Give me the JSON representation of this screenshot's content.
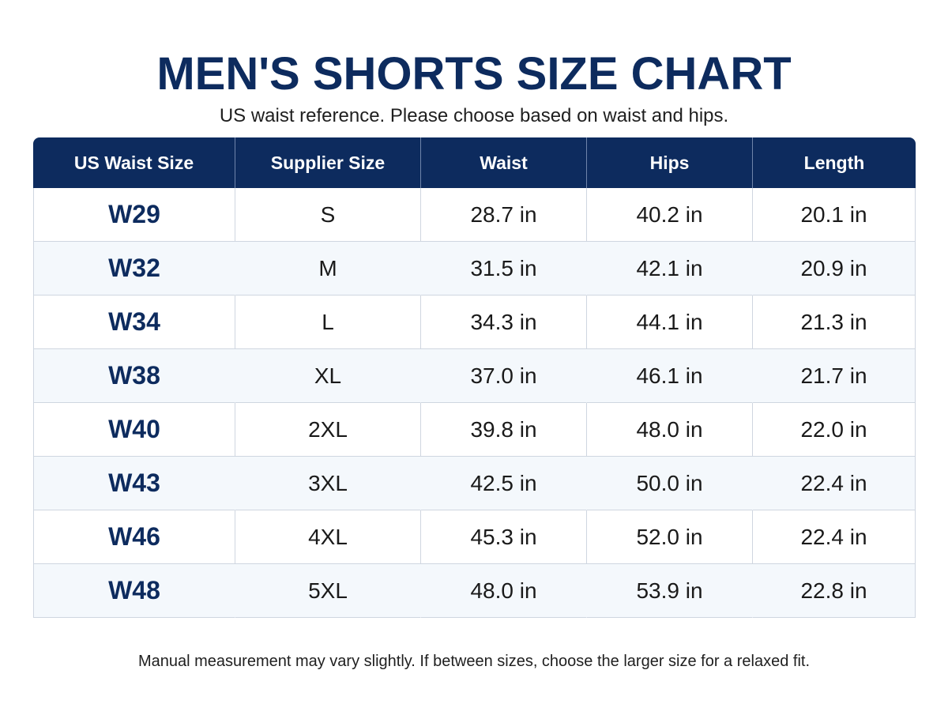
{
  "title": "MEN'S SHORTS SIZE CHART",
  "subtitle": "US waist reference. Please choose based on waist and hips.",
  "table": {
    "headers": [
      "US Waist Size",
      "Supplier Size",
      "Waist",
      "Hips",
      "Length"
    ],
    "rows": [
      [
        "W29",
        "S",
        "28.7 in",
        "40.2 in",
        "20.1 in"
      ],
      [
        "W32",
        "M",
        "31.5 in",
        "42.1 in",
        "20.9 in"
      ],
      [
        "W34",
        "L",
        "34.3 in",
        "44.1 in",
        "21.3 in"
      ],
      [
        "W38",
        "XL",
        "37.0 in",
        "46.1 in",
        "21.7 in"
      ],
      [
        "W40",
        "2XL",
        "39.8 in",
        "48.0 in",
        "22.0 in"
      ],
      [
        "W43",
        "3XL",
        "42.5 in",
        "50.0 in",
        "22.4 in"
      ],
      [
        "W46",
        "4XL",
        "45.3 in",
        "52.0 in",
        "22.4 in"
      ],
      [
        "W48",
        "5XL",
        "48.0 in",
        "53.9 in",
        "22.8 in"
      ]
    ]
  },
  "footnote": "Manual measurement may vary slightly. If between sizes, choose the larger size for a relaxed fit.",
  "colors": {
    "accent": "#0d2b5e",
    "stripe": "#f4f8fc",
    "border": "#cfd6e0"
  }
}
